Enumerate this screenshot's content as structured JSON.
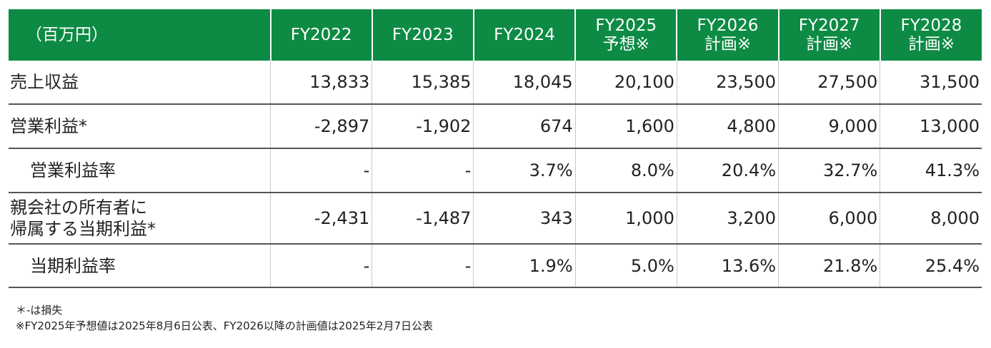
{
  "header": {
    "unit_label": "（百万円）",
    "columns": [
      {
        "l1": "FY2022",
        "l2": ""
      },
      {
        "l1": "FY2023",
        "l2": ""
      },
      {
        "l1": "FY2024",
        "l2": ""
      },
      {
        "l1": "FY2025",
        "l2": "予想※"
      },
      {
        "l1": "FY2026",
        "l2": "計画※"
      },
      {
        "l1": "FY2027",
        "l2": "計画※"
      },
      {
        "l1": "FY2028",
        "l2": "計画※"
      }
    ]
  },
  "rows": [
    {
      "label": "売上収益",
      "label2": "",
      "values": [
        "13,833",
        "15,385",
        "18,045",
        "20,100",
        "23,500",
        "27,500",
        "31,500"
      ]
    },
    {
      "label": "営業利益*",
      "label2": "",
      "values": [
        "-2,897",
        "-1,902",
        "674",
        "1,600",
        "4,800",
        "9,000",
        "13,000"
      ]
    },
    {
      "label": "営業利益率",
      "label2": "",
      "values": [
        "-",
        "-",
        "3.7%",
        "8.0%",
        "20.4%",
        "32.7%",
        "41.3%"
      ]
    },
    {
      "label": "親会社の所有者に",
      "label2": "帰属する当期利益*",
      "values": [
        "-2,431",
        "-1,487",
        "343",
        "1,000",
        "3,200",
        "6,000",
        "8,000"
      ]
    },
    {
      "label": "当期利益率",
      "label2": "",
      "values": [
        "-",
        "-",
        "1.9%",
        "5.0%",
        "13.6%",
        "21.8%",
        "25.4%"
      ]
    }
  ],
  "notes": [
    "＊-は損失",
    "※FY2025年予想値は2025年8月6日公表、FY2026以降の計画値は2025年2月7日公表"
  ],
  "colors": {
    "header_bg": "#0d8b44",
    "header_text": "#ffffff",
    "row_rule": "#555555"
  }
}
